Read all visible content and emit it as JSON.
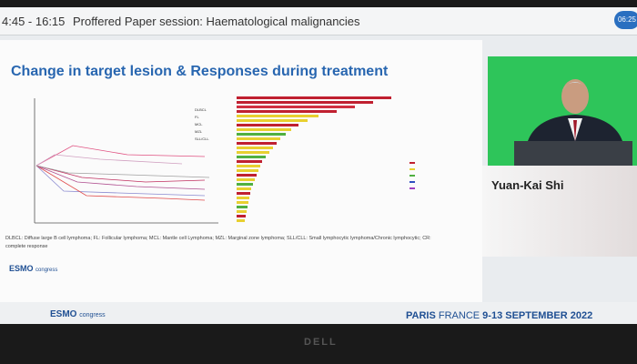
{
  "session_bar": {
    "time": "4:45 - 16:15",
    "title": "Proffered Paper session: Haematological malignancies",
    "clock": "06:25"
  },
  "slide": {
    "title": "Change in target lesion & Responses during treatment",
    "legend": [
      "DLBCL",
      "FL",
      "MCL",
      "MZL",
      "SLL/CLL"
    ],
    "footnote": "DLBCL: Diffuse large B cell lymphoma; FL: Follicular lymphoma; MCL: Mantle cell Lymphoma; MZL: Marginal zone lymphoma; SLL/CLL: Small lymphocytic lymphoma/Chronic lymphocytic; CR: complete response",
    "logo": {
      "brand": "ESMO",
      "suffix": "congress"
    }
  },
  "speaker": {
    "name": "Yuan-Kai Shi"
  },
  "footer": {
    "logo": {
      "brand": "ESMO",
      "suffix": "congress"
    },
    "city": "PARIS",
    "country": "FRANCE",
    "dates": "9-13 SEPTEMBER 2022"
  },
  "monitor_brand": "DELL"
}
